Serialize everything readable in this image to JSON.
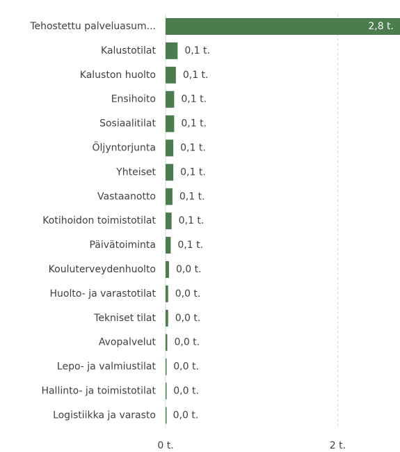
{
  "chart_data": {
    "type": "bar",
    "orientation": "horizontal",
    "categories": [
      "Tehostettu palveluasum...",
      "Kalustotilat",
      "Kaluston huolto",
      "Ensihoito",
      "Sosiaalitilat",
      "Öljyntorjunta",
      "Yhteiset",
      "Vastaanotto",
      "Kotihoidon toimistotilat",
      "Päivätoiminta",
      "Kouluterveydenhuolto",
      "Huolto- ja varastotilat",
      "Tekniset tilat",
      "Avopalvelut",
      "Lepo- ja valmiustilat",
      "Hallinto- ja toimistotilat",
      "Logistiikka ja varasto"
    ],
    "values": [
      2.8,
      0.14,
      0.12,
      0.1,
      0.1,
      0.09,
      0.09,
      0.08,
      0.07,
      0.06,
      0.04,
      0.03,
      0.03,
      0.02,
      0.01,
      0.01,
      0.005
    ],
    "value_labels": [
      "2,8 t.",
      "0,1 t.",
      "0,1 t.",
      "0,1 t.",
      "0,1 t.",
      "0,1 t.",
      "0,1 t.",
      "0,1 t.",
      "0,1 t.",
      "0,1 t.",
      "0,0 t.",
      "0,0 t.",
      "0,0 t.",
      "0,0 t.",
      "0,0 t.",
      "0,0 t.",
      "0,0 t."
    ],
    "color": "#4a7c4e",
    "xlim": [
      0,
      2.7
    ],
    "xticks": [
      {
        "value": 0,
        "label": "0 t."
      },
      {
        "value": 2,
        "label": "2 t."
      }
    ],
    "grid": true
  }
}
